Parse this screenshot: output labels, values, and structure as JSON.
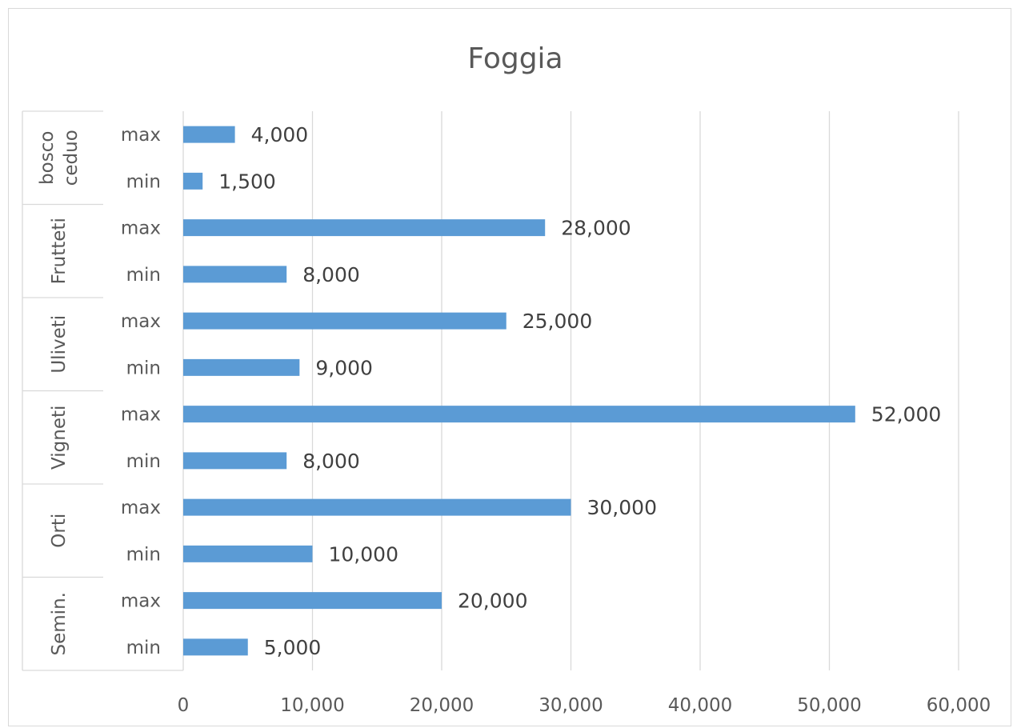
{
  "chart_data": {
    "type": "bar",
    "orientation": "horizontal",
    "title": "Foggia",
    "xlabel": "",
    "ylabel": "",
    "xlim": [
      0,
      60000
    ],
    "x_ticks": [
      0,
      10000,
      20000,
      30000,
      40000,
      50000,
      60000
    ],
    "x_tick_labels": [
      "0",
      "10,000",
      "20,000",
      "30,000",
      "40,000",
      "50,000",
      "60,000"
    ],
    "grid": "vertical",
    "legend": "none",
    "bar_color": "#5b9bd5",
    "groups": [
      {
        "label": [
          "bosco",
          "ceduo"
        ],
        "items": [
          {
            "label": "max",
            "value": 4000,
            "value_label": "4,000"
          },
          {
            "label": "min",
            "value": 1500,
            "value_label": "1,500"
          }
        ]
      },
      {
        "label": [
          "Frutteti"
        ],
        "items": [
          {
            "label": "max",
            "value": 28000,
            "value_label": "28,000"
          },
          {
            "label": "min",
            "value": 8000,
            "value_label": "8,000"
          }
        ]
      },
      {
        "label": [
          "Uliveti"
        ],
        "items": [
          {
            "label": "max",
            "value": 25000,
            "value_label": "25,000"
          },
          {
            "label": "min",
            "value": 9000,
            "value_label": "9,000"
          }
        ]
      },
      {
        "label": [
          "Vigneti"
        ],
        "items": [
          {
            "label": "max",
            "value": 52000,
            "value_label": "52,000"
          },
          {
            "label": "min",
            "value": 8000,
            "value_label": "8,000"
          }
        ]
      },
      {
        "label": [
          "Orti"
        ],
        "items": [
          {
            "label": "max",
            "value": 30000,
            "value_label": "30,000"
          },
          {
            "label": "min",
            "value": 10000,
            "value_label": "10,000"
          }
        ]
      },
      {
        "label": [
          "Semin."
        ],
        "items": [
          {
            "label": "max",
            "value": 20000,
            "value_label": "20,000"
          },
          {
            "label": "min",
            "value": 5000,
            "value_label": "5,000"
          }
        ]
      }
    ]
  }
}
